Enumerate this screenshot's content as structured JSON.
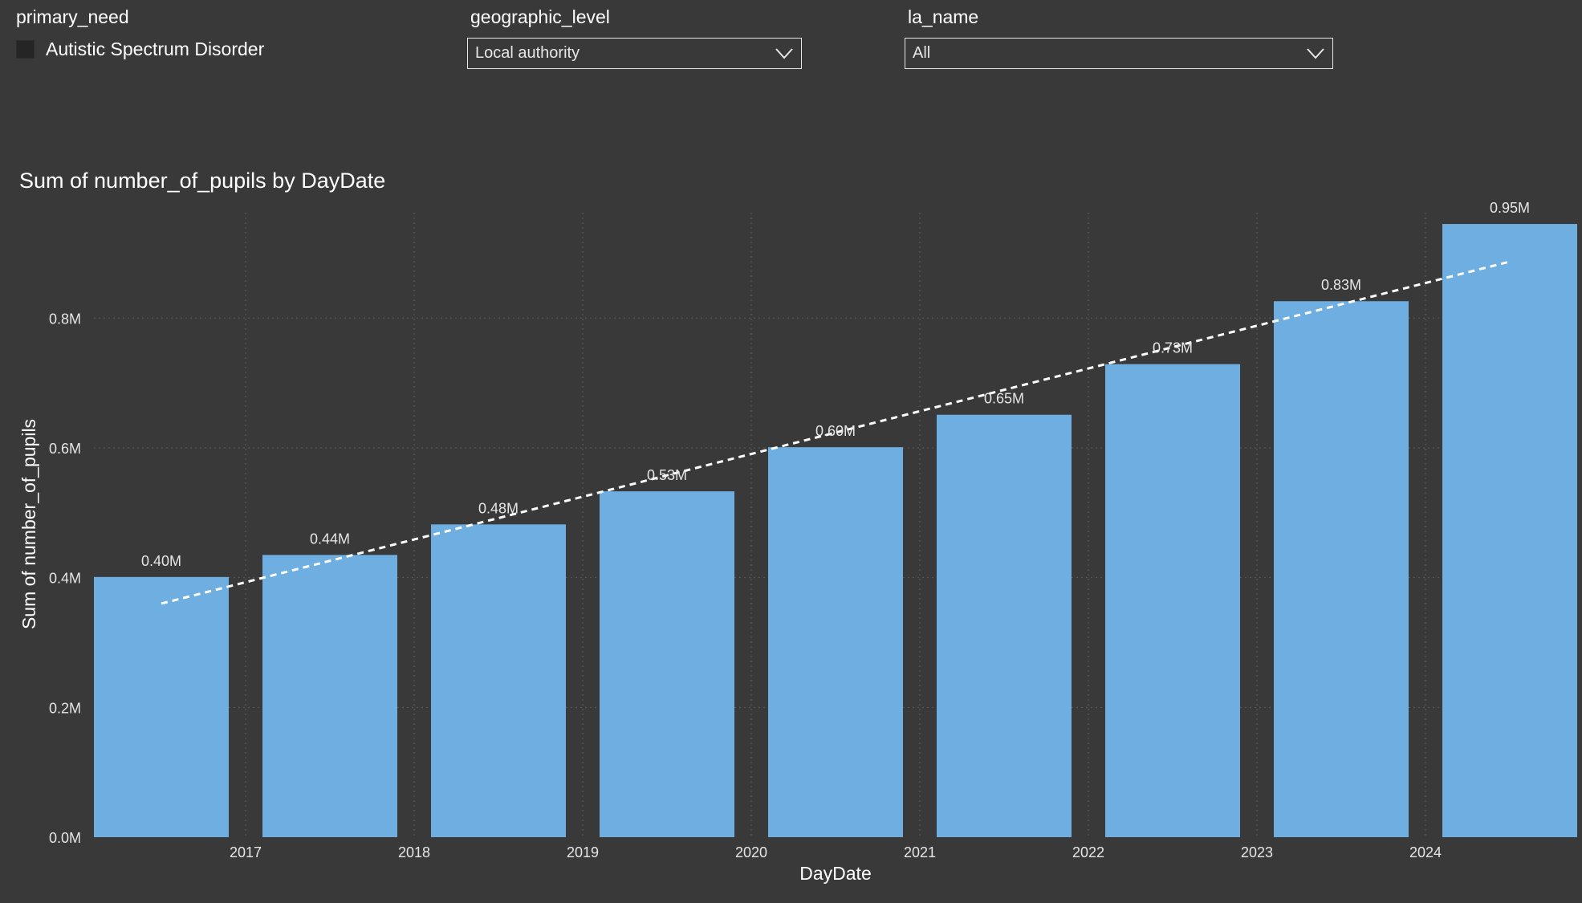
{
  "slicers": {
    "primary_need": {
      "title": "primary_need",
      "option_label": "Autistic Spectrum Disorder",
      "checked": false
    },
    "geographic_level": {
      "title": "geographic_level",
      "selected": "Local authority"
    },
    "la_name": {
      "title": "la_name",
      "selected": "All"
    }
  },
  "colors": {
    "background": "#393939",
    "bar": "#6eaee0",
    "trend": "#ffffff",
    "grid": "#5a5a5a",
    "axis_text": "#e6e6e6"
  },
  "chart_data": {
    "type": "bar",
    "title": "Sum of number_of_pupils by DayDate",
    "xlabel": "DayDate",
    "ylabel": "Sum of number_of_pupils",
    "categories": [
      "",
      "2017",
      "2018",
      "2019",
      "2020",
      "2021",
      "2022",
      "2023",
      "2024"
    ],
    "values": [
      0.401,
      0.435,
      0.482,
      0.533,
      0.601,
      0.651,
      0.729,
      0.826,
      0.945
    ],
    "data_labels": [
      "0.40M",
      "0.44M",
      "0.48M",
      "0.53M",
      "0.60M",
      "0.65M",
      "0.73M",
      "0.83M",
      "0.95M"
    ],
    "unit": "M",
    "ylim": [
      0,
      0.95
    ],
    "yticks": [
      0,
      0.2,
      0.4,
      0.6,
      0.8
    ],
    "ytick_labels": [
      "0.0M",
      "0.2M",
      "0.4M",
      "0.6M",
      "0.8M"
    ],
    "trend_line": {
      "style": "dashed",
      "start": 0.36,
      "end": 0.887
    },
    "grid": true,
    "legend": "none"
  }
}
